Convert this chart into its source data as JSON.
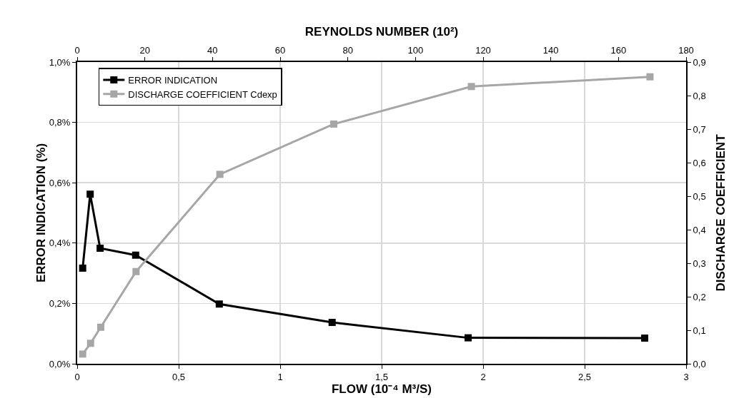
{
  "chart_data": {
    "type": "line",
    "xlabel": "FLOW (10⁻⁴ M³/S)",
    "x2label": "REYNOLDS NUMBER (10²)",
    "ylabel": "ERROR INDICATION (%)",
    "y2label": "DISCHARGE COEFFICIENT",
    "xlim": [
      0,
      3
    ],
    "xticks": [
      0,
      {
        "value": 0.5,
        "label": "0,5"
      },
      1,
      {
        "value": 1.5,
        "label": "1,5"
      },
      2,
      {
        "value": 2.5,
        "label": "2,5"
      },
      3
    ],
    "x2lim": [
      0,
      180
    ],
    "x2ticks": [
      0,
      20,
      40,
      60,
      80,
      100,
      120,
      140,
      160,
      180
    ],
    "ylim": [
      0,
      1
    ],
    "yticks": [
      {
        "value": 0,
        "label": "0,0%"
      },
      {
        "value": 0.2,
        "label": "0,2%"
      },
      {
        "value": 0.4,
        "label": "0,4%"
      },
      {
        "value": 0.6,
        "label": "0,6%"
      },
      {
        "value": 0.8,
        "label": "0,8%"
      },
      {
        "value": 1,
        "label": "1,0%"
      }
    ],
    "y2lim": [
      0,
      0.9
    ],
    "y2ticks": [
      {
        "value": 0,
        "label": "0,0"
      },
      {
        "value": 0.1,
        "label": "0,1"
      },
      {
        "value": 0.2,
        "label": "0,2"
      },
      {
        "value": 0.3,
        "label": "0,3"
      },
      {
        "value": 0.4,
        "label": "0,4"
      },
      {
        "value": 0.5,
        "label": "0,5"
      },
      {
        "value": 0.6,
        "label": "0,6"
      },
      {
        "value": 0.7,
        "label": "0,7"
      },
      {
        "value": 0.8,
        "label": "0,8"
      },
      {
        "value": 0.9,
        "label": "0,9"
      }
    ],
    "series": [
      {
        "name": "ERROR INDICATION",
        "color": "#000000",
        "x": [
          0.027,
          0.064,
          0.113,
          0.288,
          0.7,
          1.256,
          1.926,
          2.796
        ],
        "values": [
          0.317,
          0.562,
          0.383,
          0.36,
          0.198,
          0.137,
          0.086,
          0.085
        ]
      },
      {
        "name": "DISCHARGE COEFFICIENT Cdexp",
        "color": "#a6a6a6",
        "axis": "y2",
        "x": [
          0.027,
          0.066,
          0.116,
          0.29,
          0.703,
          1.264,
          1.942,
          2.822
        ],
        "values": [
          0.029,
          0.061,
          0.109,
          0.275,
          0.565,
          0.715,
          0.827,
          0.856
        ]
      }
    ],
    "grid": true,
    "legend": "top left",
    "marker": "square",
    "line_style": "solid"
  }
}
